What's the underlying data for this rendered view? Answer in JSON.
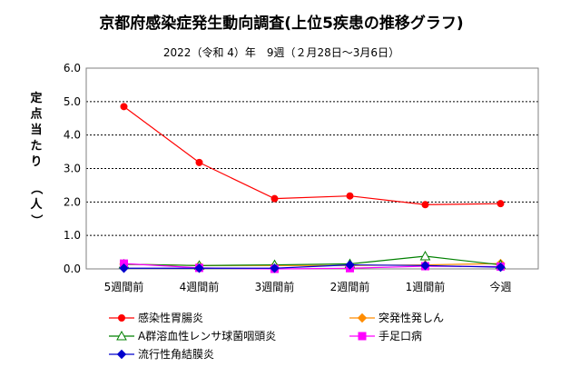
{
  "chart_data": {
    "type": "line",
    "title": "京都府感染症発生動向調査(上位5疾患の推移グラフ)",
    "subtitle": "2022（令和 4）年　9週（２月28日～3月6日）",
    "ylabel": "定点当たり（人）",
    "xlabel": "",
    "ylim": [
      0,
      6
    ],
    "yticks": [
      "0.0",
      "1.0",
      "2.0",
      "3.0",
      "4.0",
      "5.0",
      "6.0"
    ],
    "grid": true,
    "legend_position": "bottom",
    "categories": [
      "5週間前",
      "4週間前",
      "3週間前",
      "2週間前",
      "1週間前",
      "今週"
    ],
    "series": [
      {
        "name": "感染性胃腸炎",
        "color": "#ff0000",
        "marker": "circle",
        "values": [
          4.85,
          3.18,
          2.1,
          2.18,
          1.92,
          1.95
        ]
      },
      {
        "name": "突発性発しん",
        "color": "#ff8c00",
        "marker": "diamond",
        "values": [
          0.14,
          0.1,
          0.1,
          0.1,
          0.12,
          0.16
        ]
      },
      {
        "name": "A群溶血性レンサ球菌咽頭炎",
        "color": "#008000",
        "marker": "triangle",
        "values": [
          0.14,
          0.1,
          0.12,
          0.15,
          0.38,
          0.12
        ]
      },
      {
        "name": "手足口病",
        "color": "#ff00ff",
        "marker": "square",
        "values": [
          0.16,
          0.03,
          0.0,
          0.02,
          0.08,
          0.07
        ]
      },
      {
        "name": "流行性角結膜炎",
        "color": "#0000cd",
        "marker": "diamond",
        "values": [
          0.02,
          0.02,
          0.02,
          0.12,
          0.1,
          0.05
        ]
      }
    ]
  }
}
